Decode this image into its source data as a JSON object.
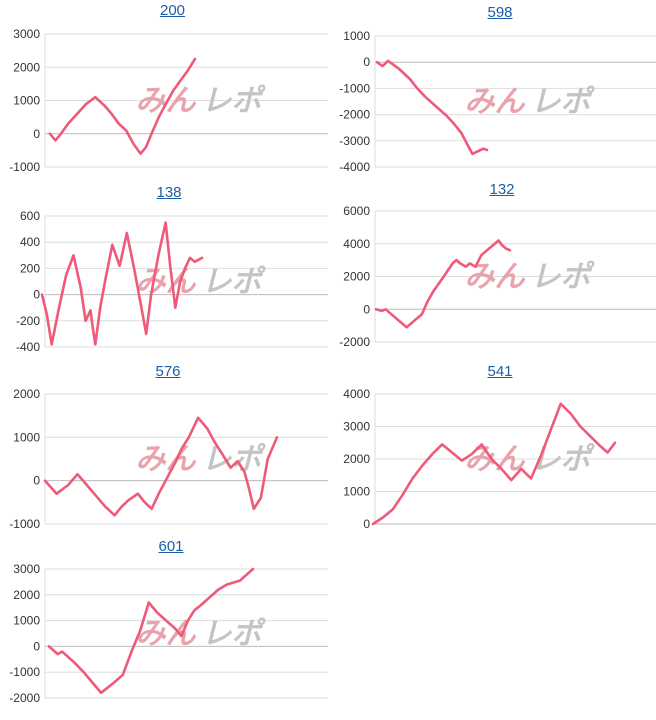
{
  "style": {
    "line_color": "#ee5a78",
    "grid_color": "#dddddd",
    "zero_line_color": "#bbbbbb",
    "title_color": "#1a5fa8",
    "watermark_colors": [
      "#e8a3ad",
      "#c4c4c4"
    ]
  },
  "watermark": {
    "part1": "みん",
    "part2": "レポ"
  },
  "chart_data": [
    {
      "type": "line",
      "title": "200",
      "ylim": [
        -1000,
        3000
      ],
      "yticks": [
        3000,
        2000,
        1000,
        0,
        -1000
      ],
      "grid": true,
      "x": [
        0,
        3,
        6,
        10,
        15,
        20,
        25,
        30,
        34,
        38,
        42,
        46,
        50,
        53,
        56,
        60,
        64,
        68,
        72,
        76,
        80
      ],
      "y": [
        0,
        -200,
        0,
        300,
        600,
        900,
        1100,
        850,
        600,
        300,
        100,
        -300,
        -600,
        -400,
        0,
        500,
        900,
        1300,
        1600,
        1900,
        2250
      ]
    },
    {
      "type": "line",
      "title": "598",
      "ylim": [
        -4000,
        1000
      ],
      "yticks": [
        1000,
        0,
        -1000,
        -2000,
        -3000,
        -4000
      ],
      "grid": true,
      "x": [
        0,
        3,
        6,
        9,
        12,
        15,
        18,
        22,
        26,
        30,
        34,
        38,
        42,
        46,
        49,
        52,
        55,
        58,
        60
      ],
      "y": [
        0,
        -150,
        50,
        -100,
        -250,
        -450,
        -650,
        -1000,
        -1300,
        -1550,
        -1800,
        -2050,
        -2350,
        -2700,
        -3100,
        -3500,
        -3400,
        -3300,
        -3350
      ]
    },
    {
      "type": "line",
      "title": "138",
      "ylim": [
        -400,
        600
      ],
      "yticks": [
        600,
        400,
        200,
        0,
        -200,
        -400
      ],
      "grid": true,
      "x": [
        0,
        2,
        4,
        7,
        10,
        13,
        16,
        18,
        20,
        21,
        22,
        24,
        26,
        29,
        32,
        33,
        35,
        38,
        41,
        43,
        45,
        48,
        51,
        53,
        55,
        57,
        59,
        61,
        63,
        65,
        66
      ],
      "y": [
        0,
        -150,
        -380,
        -100,
        150,
        300,
        50,
        -200,
        -120,
        -260,
        -380,
        -100,
        100,
        380,
        220,
        300,
        470,
        200,
        -100,
        -300,
        0,
        300,
        550,
        200,
        -100,
        100,
        200,
        280,
        250,
        270,
        280
      ]
    },
    {
      "type": "line",
      "title": "132",
      "ylim": [
        -2000,
        6000
      ],
      "yticks": [
        6000,
        4000,
        2000,
        0,
        -2000
      ],
      "grid": true,
      "x": [
        0,
        3,
        5,
        8,
        12,
        16,
        20,
        24,
        27,
        30,
        33,
        36,
        40,
        42,
        44,
        47,
        49,
        52,
        55,
        58,
        61,
        64,
        66,
        68,
        70
      ],
      "y": [
        0,
        -100,
        0,
        -300,
        -700,
        -1100,
        -700,
        -300,
        500,
        1100,
        1600,
        2100,
        2800,
        3000,
        2800,
        2600,
        2800,
        2600,
        3300,
        3600,
        3900,
        4200,
        3900,
        3700,
        3600
      ]
    },
    {
      "type": "line",
      "title": "576",
      "ylim": [
        -1000,
        2000
      ],
      "yticks": [
        2000,
        1000,
        0,
        -1000
      ],
      "grid": true,
      "x": [
        0,
        5,
        10,
        14,
        18,
        22,
        26,
        30,
        33,
        36,
        40,
        43,
        46,
        49,
        52,
        56,
        59,
        62,
        66,
        70,
        73,
        76,
        80,
        83,
        86,
        88,
        90,
        93,
        96,
        100
      ],
      "y": [
        0,
        -300,
        -100,
        150,
        -100,
        -350,
        -600,
        -800,
        -600,
        -450,
        -300,
        -500,
        -650,
        -300,
        0,
        400,
        750,
        1000,
        1450,
        1200,
        900,
        650,
        300,
        450,
        200,
        -200,
        -650,
        -400,
        500,
        1000
      ]
    },
    {
      "type": "line",
      "title": "541",
      "ylim": [
        0,
        4000
      ],
      "yticks": [
        4000,
        3000,
        2000,
        1000,
        0
      ],
      "grid": true,
      "x": [
        0,
        4,
        8,
        12,
        16,
        20,
        24,
        28,
        32,
        36,
        40,
        44,
        48,
        52,
        56,
        60,
        64,
        68,
        72,
        76,
        80,
        84,
        88,
        92,
        95,
        98
      ],
      "y": [
        0,
        200,
        450,
        900,
        1400,
        1800,
        2150,
        2450,
        2200,
        1950,
        2150,
        2450,
        2000,
        1700,
        1350,
        1700,
        1400,
        2100,
        2900,
        3700,
        3400,
        3000,
        2700,
        2400,
        2200,
        2500
      ]
    },
    {
      "type": "line",
      "title": "601",
      "ylim": [
        -2000,
        3000
      ],
      "yticks": [
        3000,
        2000,
        1000,
        0,
        -1000,
        -2000
      ],
      "grid": true,
      "x": [
        0,
        4,
        6,
        8,
        12,
        16,
        20,
        24,
        27,
        30,
        34,
        38,
        42,
        46,
        50,
        54,
        58,
        61,
        64,
        67,
        70,
        74,
        78,
        82,
        86,
        88,
        90,
        92,
        94
      ],
      "y": [
        0,
        -300,
        -200,
        -350,
        -650,
        -1000,
        -1400,
        -1800,
        -1600,
        -1400,
        -1100,
        -200,
        600,
        1700,
        1300,
        1000,
        700,
        400,
        1000,
        1400,
        1600,
        1900,
        2200,
        2400,
        2500,
        2550,
        2700,
        2850,
        3000
      ]
    }
  ]
}
